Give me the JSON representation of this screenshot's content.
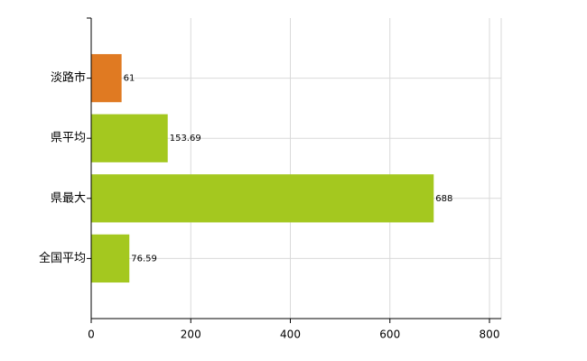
{
  "chart_data": {
    "type": "bar",
    "orientation": "horizontal",
    "categories": [
      "淡路市",
      "県平均",
      "県最大",
      "全国平均"
    ],
    "values": [
      61,
      153.69,
      688,
      76.59
    ],
    "colors": [
      "#e07a22",
      "#a4c81f",
      "#a4c81f",
      "#a4c81f"
    ],
    "xlim": [
      0,
      800
    ],
    "xticks": [
      0,
      200,
      400,
      600,
      800
    ],
    "grid": true
  }
}
